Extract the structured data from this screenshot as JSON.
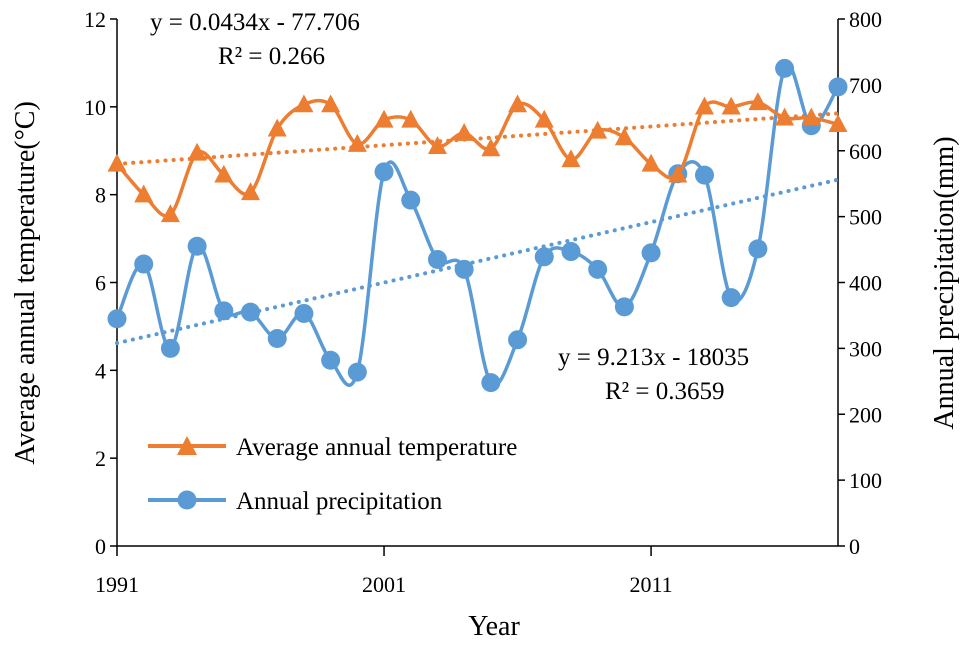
{
  "chart_data": {
    "type": "line",
    "x": [
      1991,
      1992,
      1993,
      1994,
      1995,
      1996,
      1997,
      1998,
      1999,
      2000,
      2001,
      2002,
      2003,
      2004,
      2005,
      2006,
      2007,
      2008,
      2009,
      2010,
      2011,
      2012,
      2013,
      2014,
      2015,
      2016,
      2017,
      2018
    ],
    "xlim": [
      1991,
      2018
    ],
    "x_ticks": [
      "1991",
      "2001",
      "2011"
    ],
    "xlabel": "Year",
    "ylabel_left": "Average annual temperature(°C)",
    "ylabel_right": "Annual precipitation(mm)",
    "ylim_left": [
      0,
      12
    ],
    "ylim_right": [
      0,
      800
    ],
    "y_ticks_left": [
      "0",
      "2",
      "4",
      "6",
      "8",
      "10",
      "12"
    ],
    "y_ticks_right": [
      "0",
      "100",
      "200",
      "300",
      "400",
      "500",
      "600",
      "700",
      "800"
    ],
    "series": [
      {
        "name": "Average annual temperature",
        "axis": "left",
        "color": "#ED7D31",
        "marker": "triangle",
        "values": [
          8.7,
          8.0,
          7.55,
          8.95,
          8.45,
          8.05,
          9.5,
          10.05,
          10.05,
          9.15,
          9.7,
          9.7,
          9.1,
          9.4,
          9.05,
          10.05,
          9.7,
          8.8,
          9.45,
          9.3,
          8.7,
          8.45,
          10.0,
          10.0,
          10.1,
          9.75,
          9.75,
          9.6
        ],
        "trend": {
          "equation": "y = 0.0434x - 77.706",
          "r2": "R² = 0.266",
          "start": 8.7,
          "end": 9.85
        }
      },
      {
        "name": "Annual precipitation",
        "axis": "right",
        "color": "#5B9BD5",
        "marker": "circle",
        "values": [
          345,
          428,
          300,
          455,
          357,
          355,
          315,
          353,
          282,
          264,
          568,
          525,
          435,
          420,
          248,
          313,
          439,
          447,
          420,
          363,
          445,
          565,
          563,
          377,
          451,
          725,
          638,
          697
        ],
        "trend": {
          "equation": "y = 9.213x - 18035",
          "r2": "R² = 0.3659",
          "start": 308,
          "end": 556
        }
      }
    ]
  }
}
